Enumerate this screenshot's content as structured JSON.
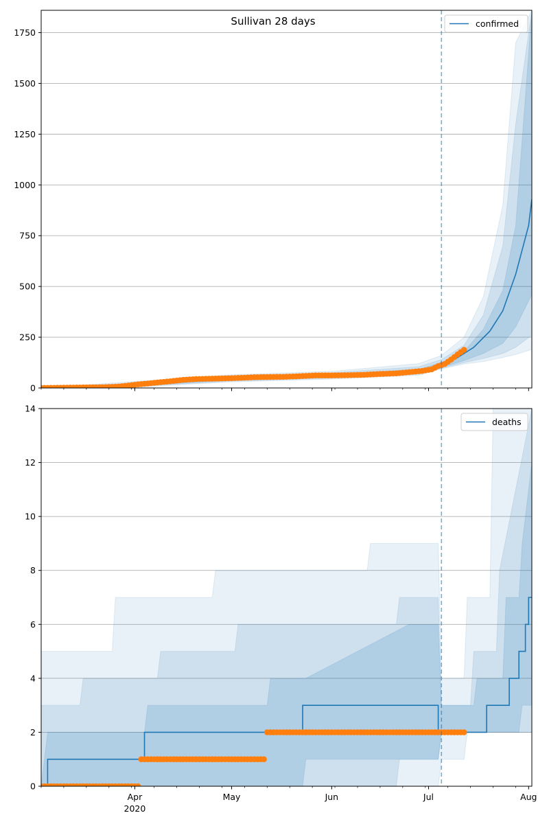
{
  "figure_title": "Sullivan 28 days",
  "colors": {
    "model": "#1f77b4",
    "observed": "#ff7f0e",
    "grid": "#b0b0b0",
    "forecast_line": "#1f77b4"
  },
  "chart_data": [
    {
      "type": "line",
      "title": "Sullivan 28 days",
      "legend": {
        "label": "confirmed",
        "placement": "upper right"
      },
      "grid": "y",
      "xlim": [
        "2020-03-03",
        "2020-08-02"
      ],
      "ylim": [
        0,
        1860
      ],
      "yticks": [
        0,
        250,
        500,
        750,
        1000,
        1250,
        1500,
        1750
      ],
      "xticks": [
        {
          "date": "2020-04-01",
          "label": "Apr",
          "sublabel": "2020"
        },
        {
          "date": "2020-05-01",
          "label": "May"
        },
        {
          "date": "2020-06-01",
          "label": "Jun"
        },
        {
          "date": "2020-07-01",
          "label": "Jul"
        },
        {
          "date": "2020-08-01",
          "label": "Aug"
        }
      ],
      "forecast_start": "2020-07-05",
      "series": [
        {
          "name": "confirmed",
          "x": [
            "2020-03-03",
            "2020-03-15",
            "2020-03-25",
            "2020-04-01",
            "2020-04-10",
            "2020-04-20",
            "2020-05-01",
            "2020-05-10",
            "2020-05-20",
            "2020-06-01",
            "2020-06-10",
            "2020-06-20",
            "2020-06-28",
            "2020-07-05",
            "2020-07-10",
            "2020-07-15",
            "2020-07-20",
            "2020-07-24",
            "2020-07-28",
            "2020-08-01",
            "2020-08-02"
          ],
          "values": [
            0,
            2,
            5,
            15,
            30,
            38,
            45,
            52,
            57,
            60,
            65,
            72,
            82,
            110,
            150,
            200,
            280,
            380,
            560,
            800,
            930
          ]
        },
        {
          "name": "band_50",
          "x": [
            "2020-03-03",
            "2020-04-01",
            "2020-05-01",
            "2020-06-01",
            "2020-06-28",
            "2020-07-05",
            "2020-07-12",
            "2020-07-18",
            "2020-07-24",
            "2020-07-28",
            "2020-08-02"
          ],
          "lower": [
            0,
            10,
            38,
            52,
            72,
            100,
            135,
            170,
            220,
            300,
            460
          ],
          "upper": [
            0,
            20,
            52,
            68,
            92,
            125,
            180,
            290,
            480,
            800,
            1860
          ]
        },
        {
          "name": "band_80",
          "x": [
            "2020-03-03",
            "2020-04-01",
            "2020-05-01",
            "2020-06-01",
            "2020-06-28",
            "2020-07-05",
            "2020-07-12",
            "2020-07-18",
            "2020-07-24",
            "2020-07-28",
            "2020-08-02"
          ],
          "lower": [
            0,
            7,
            34,
            48,
            68,
            97,
            125,
            145,
            170,
            200,
            260
          ],
          "upper": [
            0,
            25,
            58,
            75,
            105,
            140,
            210,
            360,
            700,
            1300,
            1860
          ]
        },
        {
          "name": "band_95",
          "x": [
            "2020-03-03",
            "2020-04-01",
            "2020-05-01",
            "2020-06-01",
            "2020-06-28",
            "2020-07-05",
            "2020-07-12",
            "2020-07-18",
            "2020-07-24",
            "2020-07-28",
            "2020-08-02"
          ],
          "lower": [
            0,
            4,
            30,
            44,
            63,
            94,
            118,
            130,
            150,
            165,
            190
          ],
          "upper": [
            0,
            32,
            65,
            82,
            120,
            160,
            250,
            450,
            900,
            1700,
            1860
          ]
        },
        {
          "name": "observed",
          "x": [
            "2020-03-03",
            "2020-03-08",
            "2020-03-13",
            "2020-03-18",
            "2020-03-23",
            "2020-03-27",
            "2020-03-30",
            "2020-04-02",
            "2020-04-05",
            "2020-04-08",
            "2020-04-12",
            "2020-04-16",
            "2020-04-20",
            "2020-04-25",
            "2020-04-30",
            "2020-05-04",
            "2020-05-08",
            "2020-05-12",
            "2020-05-17",
            "2020-05-22",
            "2020-05-27",
            "2020-06-01",
            "2020-06-06",
            "2020-06-11",
            "2020-06-16",
            "2020-06-21",
            "2020-06-25",
            "2020-06-29",
            "2020-07-02",
            "2020-07-04",
            "2020-07-06",
            "2020-07-08",
            "2020-07-10",
            "2020-07-12"
          ],
          "values": [
            0,
            1,
            2,
            3,
            4,
            7,
            12,
            18,
            22,
            27,
            33,
            40,
            44,
            46,
            48,
            50,
            53,
            54,
            55,
            58,
            62,
            62,
            63,
            65,
            69,
            72,
            78,
            84,
            92,
            108,
            118,
            140,
            165,
            188
          ]
        }
      ]
    },
    {
      "type": "line",
      "legend": {
        "label": "deaths",
        "placement": "upper right"
      },
      "grid": "y",
      "xlim": [
        "2020-03-03",
        "2020-08-02"
      ],
      "ylim": [
        0,
        14
      ],
      "yticks": [
        0,
        2,
        4,
        6,
        8,
        10,
        12,
        14
      ],
      "xticks": [
        {
          "date": "2020-04-01",
          "label": "Apr",
          "sublabel": "2020"
        },
        {
          "date": "2020-05-01",
          "label": "May"
        },
        {
          "date": "2020-06-01",
          "label": "Jun"
        },
        {
          "date": "2020-07-01",
          "label": "Jul"
        },
        {
          "date": "2020-08-01",
          "label": "Aug"
        }
      ],
      "forecast_start": "2020-07-05",
      "series": [
        {
          "name": "deaths",
          "x": [
            "2020-03-03",
            "2020-03-05",
            "2020-03-05",
            "2020-04-04",
            "2020-04-04",
            "2020-05-12",
            "2020-05-12",
            "2020-05-23",
            "2020-05-23",
            "2020-07-04",
            "2020-07-04",
            "2020-07-19",
            "2020-07-19",
            "2020-07-26",
            "2020-07-26",
            "2020-07-29",
            "2020-07-29",
            "2020-07-31",
            "2020-07-31",
            "2020-08-01",
            "2020-08-01",
            "2020-08-02"
          ],
          "values": [
            0,
            0,
            1,
            1,
            2,
            2,
            2,
            2,
            3,
            3,
            2,
            2,
            3,
            3,
            4,
            4,
            5,
            5,
            6,
            6,
            7,
            7
          ]
        },
        {
          "name": "band_50",
          "x": [
            "2020-03-03",
            "2020-03-05",
            "2020-03-06",
            "2020-04-04",
            "2020-04-05",
            "2020-05-12",
            "2020-05-13",
            "2020-05-23",
            "2020-05-24",
            "2020-06-25",
            "2020-07-04",
            "2020-07-05",
            "2020-07-15",
            "2020-07-16",
            "2020-07-24",
            "2020-07-25",
            "2020-07-29",
            "2020-07-30",
            "2020-08-02"
          ],
          "lower": [
            0,
            0,
            0,
            0,
            0,
            0,
            0,
            0,
            1,
            1,
            1,
            2,
            2,
            2,
            2,
            2,
            2,
            3,
            3
          ],
          "upper": [
            0,
            2,
            2,
            2,
            3,
            3,
            4,
            4,
            4,
            6,
            6,
            3,
            3,
            4,
            4,
            7,
            7,
            9,
            12
          ]
        },
        {
          "name": "band_80",
          "x": [
            "2020-03-03",
            "2020-03-15",
            "2020-03-16",
            "2020-04-08",
            "2020-04-09",
            "2020-05-02",
            "2020-05-03",
            "2020-06-21",
            "2020-06-22",
            "2020-07-04",
            "2020-07-05",
            "2020-07-14",
            "2020-07-15",
            "2020-07-22",
            "2020-07-23",
            "2020-08-02"
          ],
          "lower": [
            0,
            0,
            0,
            0,
            0,
            0,
            0,
            0,
            1,
            1,
            2,
            2,
            2,
            2,
            2,
            2
          ],
          "upper": [
            3,
            3,
            4,
            4,
            5,
            5,
            6,
            6,
            7,
            7,
            3,
            3,
            5,
            5,
            8,
            14
          ]
        },
        {
          "name": "band_95",
          "x": [
            "2020-03-03",
            "2020-03-25",
            "2020-03-26",
            "2020-04-25",
            "2020-04-26",
            "2020-06-12",
            "2020-06-13",
            "2020-07-04",
            "2020-07-05",
            "2020-07-12",
            "2020-07-13",
            "2020-07-20",
            "2020-07-21",
            "2020-08-02"
          ],
          "lower": [
            0,
            0,
            0,
            0,
            0,
            0,
            0,
            0,
            1,
            1,
            2,
            2,
            2,
            2
          ],
          "upper": [
            5,
            5,
            7,
            7,
            8,
            8,
            9,
            9,
            4,
            4,
            7,
            7,
            14,
            14
          ]
        },
        {
          "name": "observed",
          "x": [
            "2020-03-03",
            "2020-03-10",
            "2020-03-17",
            "2020-03-24",
            "2020-03-31",
            "2020-04-03",
            "2020-04-07",
            "2020-04-14",
            "2020-04-21",
            "2020-04-28",
            "2020-05-05",
            "2020-05-11",
            "2020-05-12",
            "2020-05-19",
            "2020-05-26",
            "2020-06-02",
            "2020-06-09",
            "2020-06-16",
            "2020-06-23",
            "2020-06-30",
            "2020-07-04",
            "2020-07-07",
            "2020-07-10",
            "2020-07-12"
          ],
          "values": [
            0,
            0,
            0,
            0,
            0,
            1,
            1,
            1,
            1,
            1,
            1,
            1,
            2,
            2,
            2,
            2,
            2,
            2,
            2,
            2,
            2,
            2,
            2,
            2
          ]
        }
      ]
    }
  ]
}
